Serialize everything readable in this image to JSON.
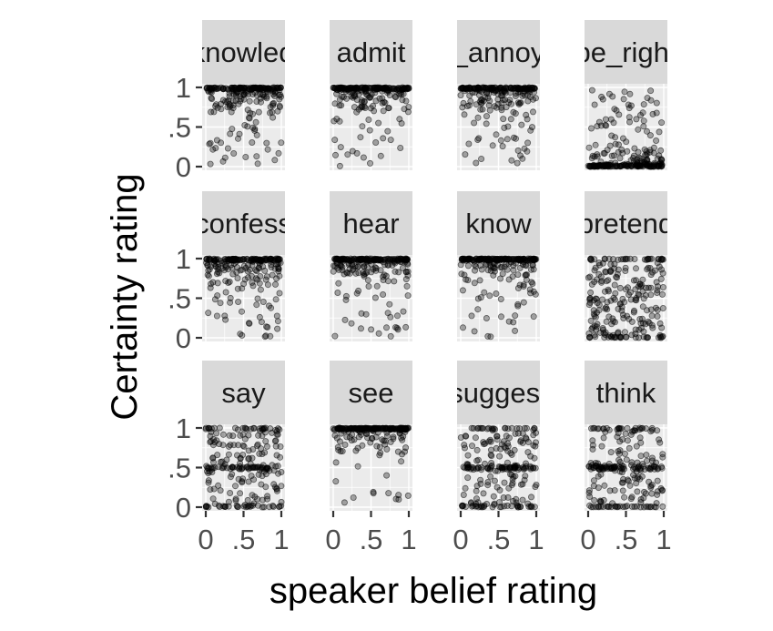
{
  "chart_data": {
    "type": "scatter",
    "title": "",
    "xlabel": "speaker belief rating",
    "ylabel": "Certainty rating",
    "xlim": [
      0,
      1
    ],
    "ylim": [
      0,
      1
    ],
    "x_ticks": [
      0,
      0.5,
      1
    ],
    "y_ticks": [
      0,
      0.5,
      1
    ],
    "x_tick_labels": [
      "0",
      ".5",
      "1"
    ],
    "y_tick_labels": [
      "0",
      ".5",
      "1"
    ],
    "grid": true,
    "legend": "none",
    "point_color": "#000000",
    "panel_background": "#ebebeb",
    "strip_background": "#d9d9d9",
    "facets": [
      {
        "label": "acknowledge",
        "points_approx": 230,
        "pattern": "most certainty ratings near 1, spread across belief ratings"
      },
      {
        "label": "admit",
        "points_approx": 230,
        "pattern": "most certainty ratings near 1, spread across belief ratings"
      },
      {
        "label": "be_annoyed",
        "points_approx": 230,
        "pattern": "most certainty ratings near 1, spread across belief ratings"
      },
      {
        "label": "be_right",
        "points_approx": 230,
        "pattern": "most certainty ratings near 0, a sparse scatter above"
      },
      {
        "label": "confess",
        "points_approx": 230,
        "pattern": "most certainty ratings near 1, some mid values"
      },
      {
        "label": "hear",
        "points_approx": 230,
        "pattern": "most certainty ratings near 1, some mid values"
      },
      {
        "label": "know",
        "points_approx": 230,
        "pattern": "dense band at certainty 1"
      },
      {
        "label": "pretend",
        "points_approx": 230,
        "pattern": "certainty ratings spread across the full range"
      },
      {
        "label": "say",
        "points_approx": 230,
        "pattern": "spread, band at certainty 0.5"
      },
      {
        "label": "see",
        "points_approx": 230,
        "pattern": "dense band at certainty 1"
      },
      {
        "label": "suggest",
        "points_approx": 230,
        "pattern": "spread, band at certainty 0.5"
      },
      {
        "label": "think",
        "points_approx": 230,
        "pattern": "spread, band at certainty 0.5"
      }
    ]
  }
}
